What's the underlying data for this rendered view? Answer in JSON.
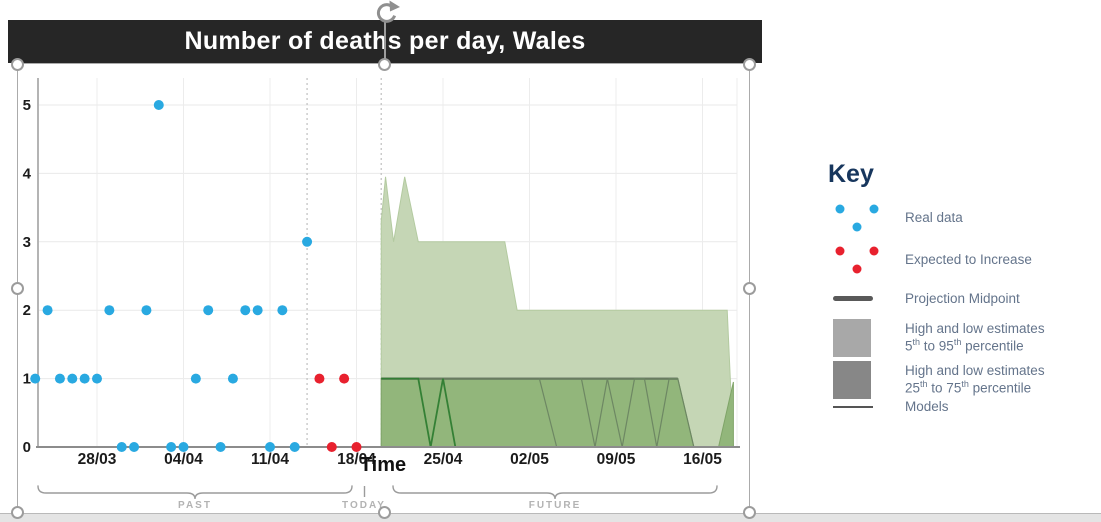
{
  "title": {
    "text": "Number of deaths per day, Wales",
    "bg": "#262626",
    "color": "#ffffff"
  },
  "chart_data": {
    "type": "scatter",
    "title": "Number of deaths per day, Wales",
    "xlabel": "Time",
    "ylabel": "",
    "ylim": [
      0,
      5
    ],
    "y_ticks": [
      0,
      1,
      2,
      3,
      4,
      5
    ],
    "x_ticks": [
      "28/03",
      "04/04",
      "11/04",
      "18/04",
      "25/04",
      "02/05",
      "09/05",
      "16/05"
    ],
    "grid": true,
    "series": [
      {
        "name": "Real data",
        "type": "scatter",
        "color": "#29a9e1",
        "points": [
          [
            "23/03",
            1
          ],
          [
            "24/03",
            2
          ],
          [
            "25/03",
            1
          ],
          [
            "26/03",
            1
          ],
          [
            "27/03",
            1
          ],
          [
            "28/03",
            1
          ],
          [
            "29/03",
            2
          ],
          [
            "30/03",
            0
          ],
          [
            "31/03",
            0
          ],
          [
            "01/04",
            2
          ],
          [
            "02/04",
            5
          ],
          [
            "03/04",
            0
          ],
          [
            "04/04",
            0
          ],
          [
            "05/04",
            1
          ],
          [
            "06/04",
            2
          ],
          [
            "07/04",
            0
          ],
          [
            "08/04",
            1
          ],
          [
            "09/04",
            2
          ],
          [
            "10/04",
            2
          ],
          [
            "11/04",
            0
          ],
          [
            "12/04",
            2
          ],
          [
            "13/04",
            0
          ],
          [
            "14/04",
            3
          ]
        ]
      },
      {
        "name": "Expected to Increase",
        "type": "scatter",
        "color": "#e8212e",
        "points": [
          [
            "15/04",
            1
          ],
          [
            "16/04",
            0
          ],
          [
            "17/04",
            1
          ],
          [
            "18/04",
            0
          ]
        ]
      }
    ],
    "projection": {
      "start_date": "20/04",
      "p5_95": {
        "name": "High and low estimates 5th to 95th percentile",
        "color": "#c5d6b5",
        "edge": "#b3caa0",
        "upper_day_offsets": [
          [
            0,
            3.3
          ],
          [
            0.35,
            3.95
          ],
          [
            1,
            3
          ],
          [
            1.9,
            3.95
          ],
          [
            3,
            3
          ],
          [
            10,
            3
          ],
          [
            11,
            2
          ],
          [
            28,
            2
          ],
          [
            28.5,
            0
          ]
        ]
      },
      "p25_75": {
        "name": "High and low estimates 25th to 75th percentile",
        "color": "#8fb478",
        "edge": "#7fa468",
        "upper_day_offsets": [
          [
            0,
            1
          ],
          [
            24,
            1
          ],
          [
            25.3,
            0
          ],
          [
            27.3,
            0
          ],
          [
            28.5,
            0.95
          ]
        ]
      },
      "midpoint": {
        "name": "Projection Midpoint",
        "color": "rgba(85,95,85,0.6)",
        "points": [
          [
            0,
            1
          ],
          [
            24,
            1
          ]
        ]
      },
      "models": [
        {
          "color": "#2f7d32",
          "width": 1.8,
          "points": [
            [
              0,
              1
            ],
            [
              3,
              1
            ],
            [
              4,
              0
            ],
            [
              5,
              1
            ],
            [
              6,
              0
            ],
            [
              28,
              0
            ]
          ]
        },
        {
          "color": "#6b8562",
          "width": 1.2,
          "points": [
            [
              12.8,
              1
            ],
            [
              14.2,
              0
            ]
          ]
        },
        {
          "color": "#6b8562",
          "width": 1.2,
          "points": [
            [
              16.2,
              1
            ],
            [
              17.3,
              0
            ],
            [
              18.3,
              1
            ],
            [
              19.5,
              0
            ],
            [
              20.5,
              1
            ],
            [
              21.3,
              1
            ],
            [
              22.3,
              0
            ],
            [
              23.3,
              1
            ],
            [
              24,
              1
            ],
            [
              25.3,
              0
            ]
          ]
        }
      ]
    },
    "annotations": {
      "dotted_line_dates": [
        "14/04",
        "20/04"
      ],
      "past_label": "PAST",
      "today_label": "TODAY",
      "future_label": "FUTURE"
    }
  },
  "key": {
    "title": "Key",
    "items": [
      {
        "id": "real-data",
        "swatch": "dots",
        "color": "#29a9e1",
        "lines": [
          [
            {
              "t": "Real data"
            }
          ]
        ]
      },
      {
        "id": "expected-to-increase",
        "swatch": "dots",
        "color": "#e8212e",
        "lines": [
          [
            {
              "t": "Expected to Increase"
            }
          ]
        ]
      },
      {
        "id": "projection-midpoint",
        "swatch": "thick-line",
        "color": "#595959",
        "lines": [
          [
            {
              "t": "Projection Midpoint"
            }
          ]
        ]
      },
      {
        "id": "estimates-5-95",
        "swatch": "square",
        "color": "#a8a8a8",
        "lines": [
          [
            {
              "t": "High and low estimates"
            }
          ],
          [
            {
              "t": "5"
            },
            {
              "t": "th",
              "sup": true
            },
            {
              "t": " to 95"
            },
            {
              "t": "th",
              "sup": true
            },
            {
              "t": " percentile"
            }
          ]
        ]
      },
      {
        "id": "estimates-25-75",
        "swatch": "square",
        "color": "#878787",
        "lines": [
          [
            {
              "t": "High and low estimates"
            }
          ],
          [
            {
              "t": "25"
            },
            {
              "t": "th",
              "sup": true
            },
            {
              "t": " to 75"
            },
            {
              "t": "th",
              "sup": true
            },
            {
              "t": " percentile"
            }
          ]
        ]
      },
      {
        "id": "models",
        "swatch": "thin-line",
        "color": "#555555",
        "lines": [
          [
            {
              "t": "Models"
            }
          ]
        ]
      }
    ]
  }
}
